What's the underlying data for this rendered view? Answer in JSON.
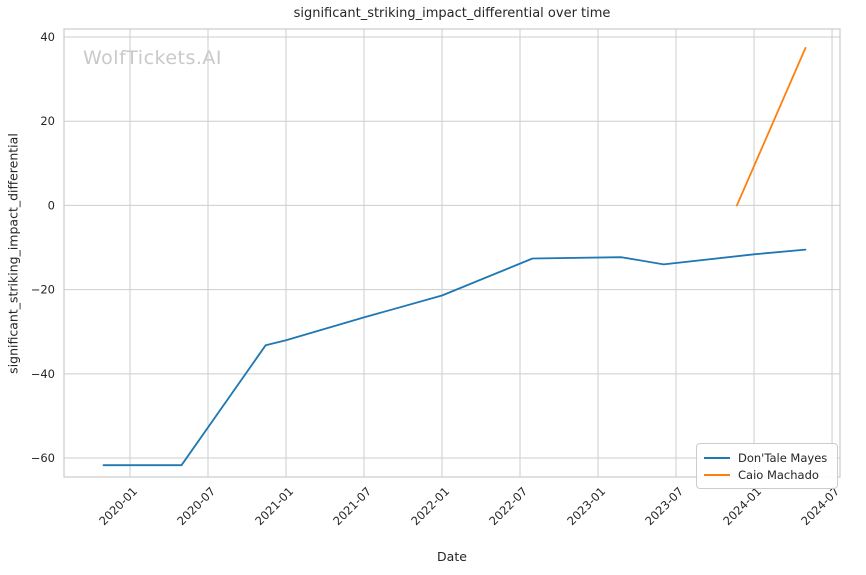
{
  "title": "significant_striking_impact_differential over time",
  "watermark": "WolfTickets.AI",
  "axes": {
    "x_label": "Date",
    "y_label": "significant_striking_impact_differential"
  },
  "colors": {
    "background": "#ffffff",
    "grid": "#cdcdcd",
    "spine": "#cccccc",
    "text": "#262626",
    "watermark": "#c9c9c9",
    "series_blue": "#1f77b4",
    "series_orange": "#ff7f0e"
  },
  "chart_data": {
    "type": "line",
    "title": "significant_striking_impact_differential over time",
    "xlabel": "Date",
    "ylabel": "significant_striking_impact_differential",
    "grid": true,
    "legend_position": "lower right",
    "x_axis": {
      "min": 2019.577,
      "max": 2024.551,
      "ticks": [
        2020.0,
        2020.5,
        2021.0,
        2021.5,
        2022.0,
        2022.5,
        2023.0,
        2023.5,
        2024.0,
        2024.5
      ],
      "tick_labels": [
        "2020-01",
        "2020-07",
        "2021-01",
        "2021-07",
        "2022-01",
        "2022-07",
        "2023-01",
        "2023-07",
        "2024-01",
        "2024-07"
      ],
      "tick_rotation_deg": 45
    },
    "y_axis": {
      "min": -64.5,
      "max": 41.9,
      "ticks": [
        -60,
        -40,
        -20,
        0,
        20,
        40
      ]
    },
    "series": [
      {
        "name": "Don'Tale Mayes",
        "color": "#1f77b4",
        "points": [
          {
            "date": "2019-11",
            "x": 2019.83,
            "y": -61.7
          },
          {
            "date": "2020-05",
            "x": 2020.33,
            "y": -61.7
          },
          {
            "date": "2020-11",
            "x": 2020.87,
            "y": -33.2
          },
          {
            "date": "2021-01",
            "x": 2021.0,
            "y": -32.0
          },
          {
            "date": "2021-07",
            "x": 2021.5,
            "y": -26.6
          },
          {
            "date": "2022-01",
            "x": 2022.0,
            "y": -21.4
          },
          {
            "date": "2022-08",
            "x": 2022.58,
            "y": -12.6
          },
          {
            "date": "2023-02",
            "x": 2023.15,
            "y": -12.3
          },
          {
            "date": "2023-06",
            "x": 2023.42,
            "y": -14.0
          },
          {
            "date": "2024-01",
            "x": 2024.0,
            "y": -11.6
          },
          {
            "date": "2024-05",
            "x": 2024.33,
            "y": -10.5
          }
        ]
      },
      {
        "name": "Caio Machado",
        "color": "#ff7f0e",
        "points": [
          {
            "date": "2023-12",
            "x": 2023.89,
            "y": 0.0
          },
          {
            "date": "2024-05",
            "x": 2024.33,
            "y": 37.4
          }
        ]
      }
    ]
  }
}
